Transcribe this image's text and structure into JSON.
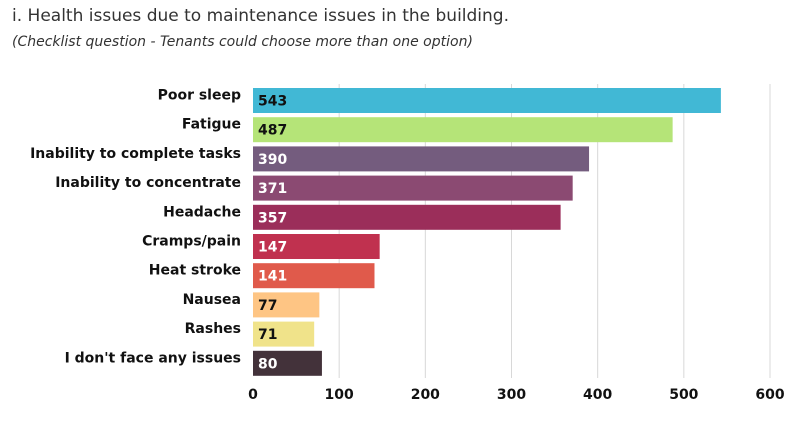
{
  "chart_data": {
    "type": "bar",
    "orientation": "horizontal",
    "title": "i. Health issues due to maintenance issues in the building.",
    "subtitle": "(Checklist question - Tenants could choose more than one option)",
    "categories": [
      "Poor sleep",
      "Fatigue",
      "Inability to complete tasks",
      "Inability to concentrate",
      "Headache",
      "Cramps/pain",
      "Heat stroke",
      "Nausea",
      "Rashes",
      "I don't face any issues"
    ],
    "values": [
      543,
      487,
      390,
      371,
      357,
      147,
      141,
      77,
      71,
      80
    ],
    "colors": [
      "#41b8d5",
      "#b5e478",
      "#745c7e",
      "#8b4a72",
      "#9b2e5a",
      "#c0314f",
      "#e05a4b",
      "#fec584",
      "#f0e38a",
      "#43323a"
    ],
    "label_colors": [
      "#111111",
      "#111111",
      "#ffffff",
      "#ffffff",
      "#ffffff",
      "#ffffff",
      "#ffffff",
      "#111111",
      "#111111",
      "#ffffff"
    ],
    "xlim": [
      0,
      600
    ],
    "xticks": [
      0,
      100,
      200,
      300,
      400,
      500,
      600
    ],
    "grid": true,
    "xlabel": "",
    "ylabel": ""
  }
}
